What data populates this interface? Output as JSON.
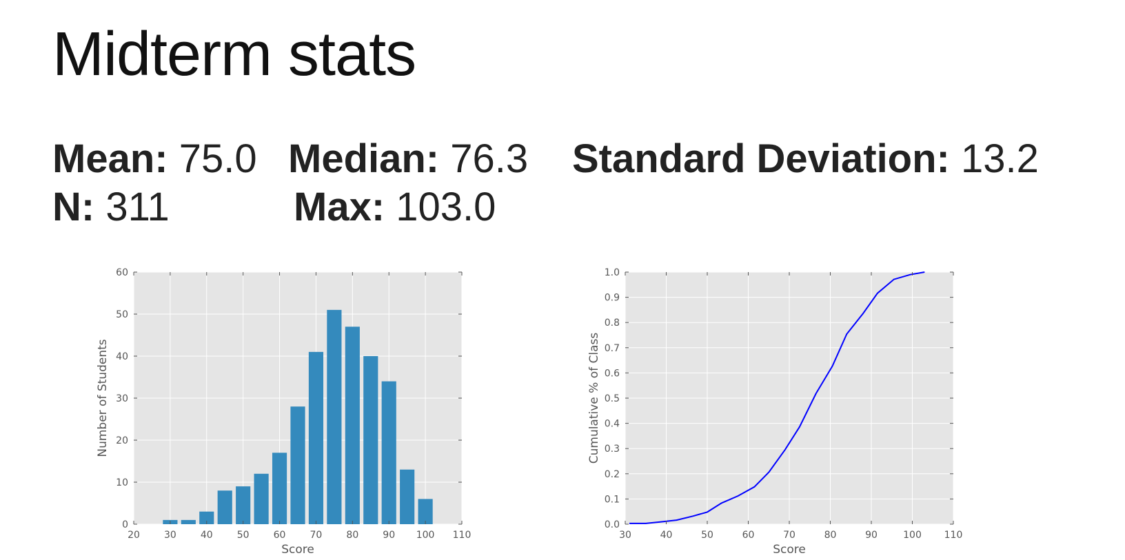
{
  "slide": {
    "title": "Midterm stats",
    "stats": {
      "mean": {
        "label": "Mean:",
        "value": "75.0"
      },
      "median": {
        "label": "Median:",
        "value": "76.3"
      },
      "std": {
        "label": "Standard Deviation:",
        "value": "13.2"
      },
      "n": {
        "label": "N:",
        "value": "311"
      },
      "max": {
        "label": "Max:",
        "value": "103.0"
      }
    }
  },
  "chart_data": [
    {
      "type": "bar",
      "title": "",
      "xlabel": "Score",
      "ylabel": "Number of Students",
      "xlim": [
        20,
        110
      ],
      "ylim": [
        0,
        60
      ],
      "xticks": [
        "20",
        "30",
        "40",
        "50",
        "60",
        "70",
        "80",
        "90",
        "100",
        "110"
      ],
      "yticks": [
        "0",
        "10",
        "20",
        "30",
        "40",
        "50",
        "60"
      ],
      "bar_color": "#348abd",
      "bin_width": 5,
      "x": [
        30,
        35,
        40,
        45,
        50,
        55,
        60,
        65,
        70,
        75,
        80,
        85,
        90,
        95,
        100
      ],
      "values": [
        1,
        1,
        3,
        8,
        9,
        12,
        17,
        28,
        41,
        51,
        47,
        40,
        34,
        13,
        6
      ],
      "grid": true
    },
    {
      "type": "line",
      "title": "",
      "xlabel": "Score",
      "ylabel": "Cumulative % of Class",
      "xlim": [
        30,
        110
      ],
      "ylim": [
        0,
        1.0
      ],
      "xticks": [
        "30",
        "40",
        "50",
        "60",
        "70",
        "80",
        "90",
        "100",
        "110"
      ],
      "yticks": [
        "0.0",
        "0.1",
        "0.2",
        "0.3",
        "0.4",
        "0.5",
        "0.6",
        "0.7",
        "0.8",
        "0.9",
        "1.0"
      ],
      "line_color": "#0000ff",
      "x": [
        31,
        35,
        38.5,
        42.5,
        46.5,
        50,
        53.5,
        57.5,
        61.5,
        65,
        69,
        72.5,
        76.5,
        80.5,
        84,
        88,
        91.5,
        95.5,
        99.5,
        103
      ],
      "y": [
        0.003,
        0.003,
        0.009,
        0.016,
        0.032,
        0.048,
        0.084,
        0.112,
        0.148,
        0.206,
        0.296,
        0.386,
        0.518,
        0.627,
        0.754,
        0.836,
        0.916,
        0.971,
        0.99,
        1.0
      ],
      "grid": true
    }
  ]
}
